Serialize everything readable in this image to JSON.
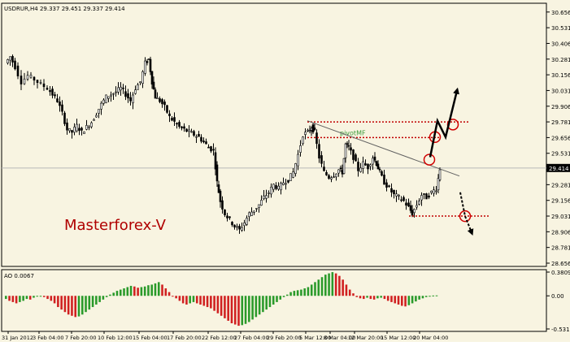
{
  "chart_data": [
    {
      "type": "candlestick",
      "panel": "price",
      "header": "USDRUR,H4  29.337 29.451 29.337 29.414",
      "symbol": "USDRUR",
      "timeframe": "H4",
      "ohlc_header": {
        "open": 29.337,
        "high": 29.451,
        "low": 29.337,
        "close": 29.414
      },
      "current_price_label": "29.414",
      "watermark": "Masterforex-V",
      "y_ticks": [
        "30.656",
        "30.531",
        "30.406",
        "30.281",
        "30.156",
        "30.031",
        "29.906",
        "29.781",
        "29.656",
        "29.531",
        "29.406",
        "29.281",
        "29.156",
        "29.031",
        "28.906",
        "28.781",
        "28.656"
      ],
      "y_tick_values": [
        30.656,
        30.531,
        30.406,
        30.281,
        30.156,
        30.031,
        29.906,
        29.781,
        29.656,
        29.531,
        29.406,
        29.281,
        29.156,
        29.031,
        28.906,
        28.781,
        28.656
      ],
      "ylim": [
        28.656,
        30.7
      ],
      "x_ticks": [
        "31 Jan 2012",
        "3 Feb 04:00",
        "7 Feb 20:00",
        "10 Feb 12:00",
        "15 Feb 04:00",
        "17 Feb 20:00",
        "22 Feb 12:00",
        "27 Feb 04:00",
        "29 Feb 20:00",
        "5 Mar 12:00",
        "8 Mar 04:00",
        "12 Mar 20:00",
        "15 Mar 12:00",
        "20 Mar 04:00"
      ],
      "path_points": [
        [
          0,
          30.25
        ],
        [
          6,
          30.3
        ],
        [
          12,
          30.22
        ],
        [
          20,
          30.1
        ],
        [
          28,
          30.15
        ],
        [
          36,
          30.12
        ],
        [
          44,
          30.08
        ],
        [
          52,
          30.05
        ],
        [
          58,
          30.0
        ],
        [
          64,
          29.95
        ],
        [
          70,
          29.85
        ],
        [
          76,
          29.72
        ],
        [
          82,
          29.7
        ],
        [
          88,
          29.75
        ],
        [
          94,
          29.7
        ],
        [
          100,
          29.74
        ],
        [
          106,
          29.78
        ],
        [
          112,
          29.85
        ],
        [
          118,
          29.92
        ],
        [
          124,
          29.98
        ],
        [
          130,
          30.0
        ],
        [
          136,
          30.02
        ],
        [
          142,
          30.05
        ],
        [
          148,
          30.0
        ],
        [
          154,
          29.95
        ],
        [
          160,
          30.05
        ],
        [
          166,
          30.1
        ],
        [
          172,
          30.25
        ],
        [
          176,
          30.28
        ],
        [
          180,
          30.1
        ],
        [
          184,
          29.98
        ],
        [
          190,
          29.95
        ],
        [
          196,
          29.9
        ],
        [
          202,
          29.82
        ],
        [
          208,
          29.78
        ],
        [
          214,
          29.74
        ],
        [
          220,
          29.72
        ],
        [
          226,
          29.7
        ],
        [
          232,
          29.68
        ],
        [
          238,
          29.66
        ],
        [
          244,
          29.62
        ],
        [
          250,
          29.58
        ],
        [
          256,
          29.55
        ],
        [
          260,
          29.3
        ],
        [
          264,
          29.15
        ],
        [
          270,
          29.05
        ],
        [
          276,
          29.0
        ],
        [
          282,
          28.95
        ],
        [
          288,
          28.92
        ],
        [
          294,
          28.98
        ],
        [
          300,
          29.05
        ],
        [
          306,
          29.08
        ],
        [
          312,
          29.12
        ],
        [
          318,
          29.18
        ],
        [
          324,
          29.22
        ],
        [
          330,
          29.28
        ],
        [
          336,
          29.25
        ],
        [
          342,
          29.3
        ],
        [
          348,
          29.32
        ],
        [
          354,
          29.38
        ],
        [
          360,
          29.52
        ],
        [
          366,
          29.68
        ],
        [
          372,
          29.7
        ],
        [
          376,
          29.74
        ],
        [
          380,
          29.7
        ],
        [
          386,
          29.5
        ],
        [
          392,
          29.38
        ],
        [
          398,
          29.34
        ],
        [
          404,
          29.36
        ],
        [
          410,
          29.4
        ],
        [
          414,
          29.38
        ],
        [
          418,
          29.6
        ],
        [
          422,
          29.58
        ],
        [
          428,
          29.5
        ],
        [
          434,
          29.4
        ],
        [
          440,
          29.45
        ],
        [
          446,
          29.42
        ],
        [
          452,
          29.5
        ],
        [
          456,
          29.45
        ],
        [
          460,
          29.38
        ],
        [
          466,
          29.3
        ],
        [
          472,
          29.25
        ],
        [
          478,
          29.2
        ],
        [
          484,
          29.18
        ],
        [
          490,
          29.15
        ],
        [
          496,
          29.1
        ],
        [
          500,
          29.05
        ],
        [
          506,
          29.12
        ],
        [
          512,
          29.2
        ],
        [
          518,
          29.18
        ],
        [
          524,
          29.22
        ],
        [
          530,
          29.25
        ],
        [
          534,
          29.41
        ]
      ],
      "annotation_label": "pivotMF",
      "ylabel": "",
      "xlabel": "",
      "title": "",
      "grid": false,
      "horizontal_levels": [
        29.781,
        29.656,
        29.031
      ]
    },
    {
      "type": "bar",
      "panel": "indicator",
      "header": "AO 0.0067",
      "indicator": "AO",
      "value": 0.0067,
      "y_ticks": [
        "0.3809",
        "0.00",
        "-0.5311"
      ],
      "y_tick_values": [
        0.3809,
        0.0,
        -0.5311
      ],
      "ylim": [
        -0.5311,
        0.3809
      ],
      "bar_values": [
        -0.05,
        -0.08,
        -0.1,
        -0.12,
        -0.1,
        -0.08,
        -0.05,
        -0.06,
        -0.03,
        -0.01,
        0.0,
        -0.02,
        -0.05,
        -0.08,
        -0.12,
        -0.18,
        -0.22,
        -0.26,
        -0.3,
        -0.32,
        -0.34,
        -0.33,
        -0.3,
        -0.26,
        -0.22,
        -0.18,
        -0.14,
        -0.1,
        -0.06,
        -0.02,
        0.02,
        0.05,
        0.08,
        0.1,
        0.12,
        0.14,
        0.16,
        0.15,
        0.13,
        0.14,
        0.15,
        0.17,
        0.18,
        0.2,
        0.22,
        0.18,
        0.12,
        0.06,
        0.0,
        -0.04,
        -0.08,
        -0.12,
        -0.14,
        -0.12,
        -0.1,
        -0.12,
        -0.14,
        -0.16,
        -0.18,
        -0.2,
        -0.24,
        -0.28,
        -0.32,
        -0.36,
        -0.4,
        -0.44,
        -0.46,
        -0.48,
        -0.47,
        -0.45,
        -0.42,
        -0.38,
        -0.34,
        -0.3,
        -0.26,
        -0.22,
        -0.18,
        -0.14,
        -0.1,
        -0.06,
        -0.02,
        0.02,
        0.06,
        0.08,
        0.09,
        0.1,
        0.12,
        0.14,
        0.18,
        0.22,
        0.26,
        0.3,
        0.34,
        0.36,
        0.38,
        0.36,
        0.32,
        0.26,
        0.18,
        0.1,
        0.04,
        -0.02,
        -0.04,
        -0.05,
        -0.03,
        -0.05,
        -0.06,
        -0.04,
        -0.03,
        -0.05,
        -0.08,
        -0.1,
        -0.12,
        -0.14,
        -0.16,
        -0.17,
        -0.15,
        -0.12,
        -0.09,
        -0.06,
        -0.04,
        -0.02,
        0.0,
        0.005,
        0.0067
      ]
    }
  ]
}
